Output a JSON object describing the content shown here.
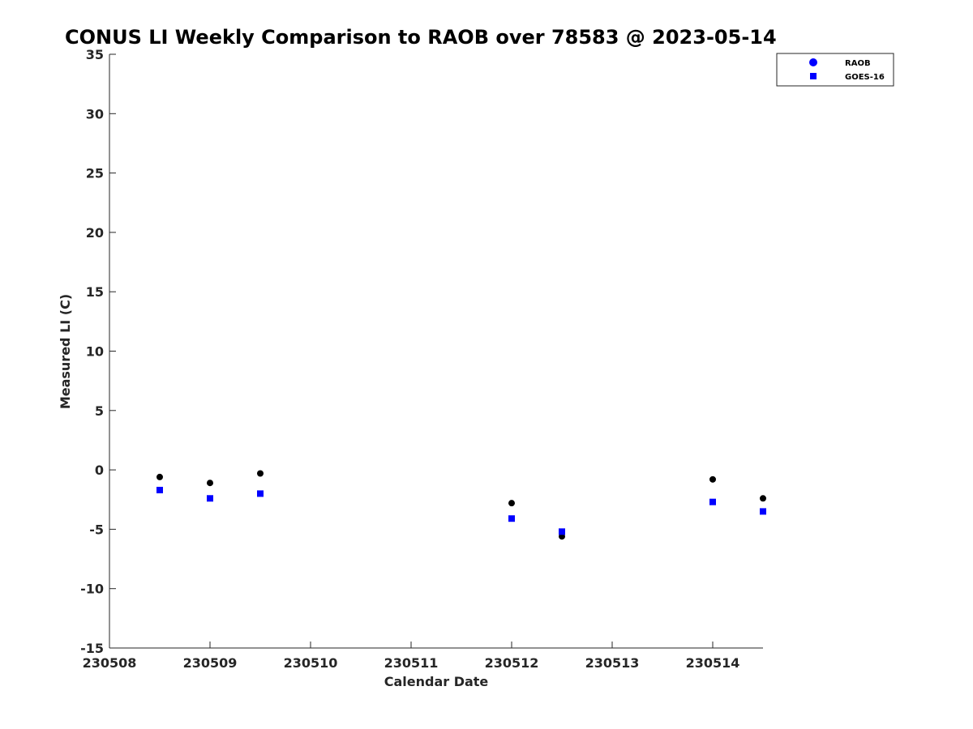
{
  "chart_data": {
    "type": "scatter",
    "title": "CONUS LI Weekly Comparison to RAOB over 78583 @ 2023-05-14",
    "xlabel": "Calendar Date",
    "ylabel": "Measured LI (C)",
    "xlim": [
      "230508",
      "230514.5"
    ],
    "ylim": [
      -15,
      35
    ],
    "x_ticks": [
      "230508",
      "230509",
      "230510",
      "230511",
      "230512",
      "230513",
      "230514"
    ],
    "y_ticks": [
      35,
      30,
      25,
      20,
      15,
      10,
      5,
      0,
      -5,
      -10,
      -15
    ],
    "grid": false,
    "legend_position": "top-right",
    "series": [
      {
        "name": "RAOB",
        "marker": "circle",
        "color": "#000000",
        "legend_color": "#0000ff",
        "points": [
          {
            "x": "230508 12Z",
            "y": -0.6
          },
          {
            "x": "230509 00Z",
            "y": -1.1
          },
          {
            "x": "230509 12Z",
            "y": -0.3
          },
          {
            "x": "230512 00Z",
            "y": -2.8
          },
          {
            "x": "230512 12Z",
            "y": -5.6
          },
          {
            "x": "230514 00Z",
            "y": -0.8
          },
          {
            "x": "230514 12Z",
            "y": -2.4
          }
        ]
      },
      {
        "name": "GOES-16",
        "marker": "square",
        "color": "#0000ff",
        "legend_color": "#0000ff",
        "points": [
          {
            "x": "230508 12Z",
            "y": -1.7
          },
          {
            "x": "230509 00Z",
            "y": -2.4
          },
          {
            "x": "230509 12Z",
            "y": -2.0
          },
          {
            "x": "230512 00Z",
            "y": -4.1
          },
          {
            "x": "230512 12Z",
            "y": -5.2
          },
          {
            "x": "230514 00Z",
            "y": -2.7
          },
          {
            "x": "230514 12Z",
            "y": -3.5
          }
        ]
      }
    ]
  }
}
